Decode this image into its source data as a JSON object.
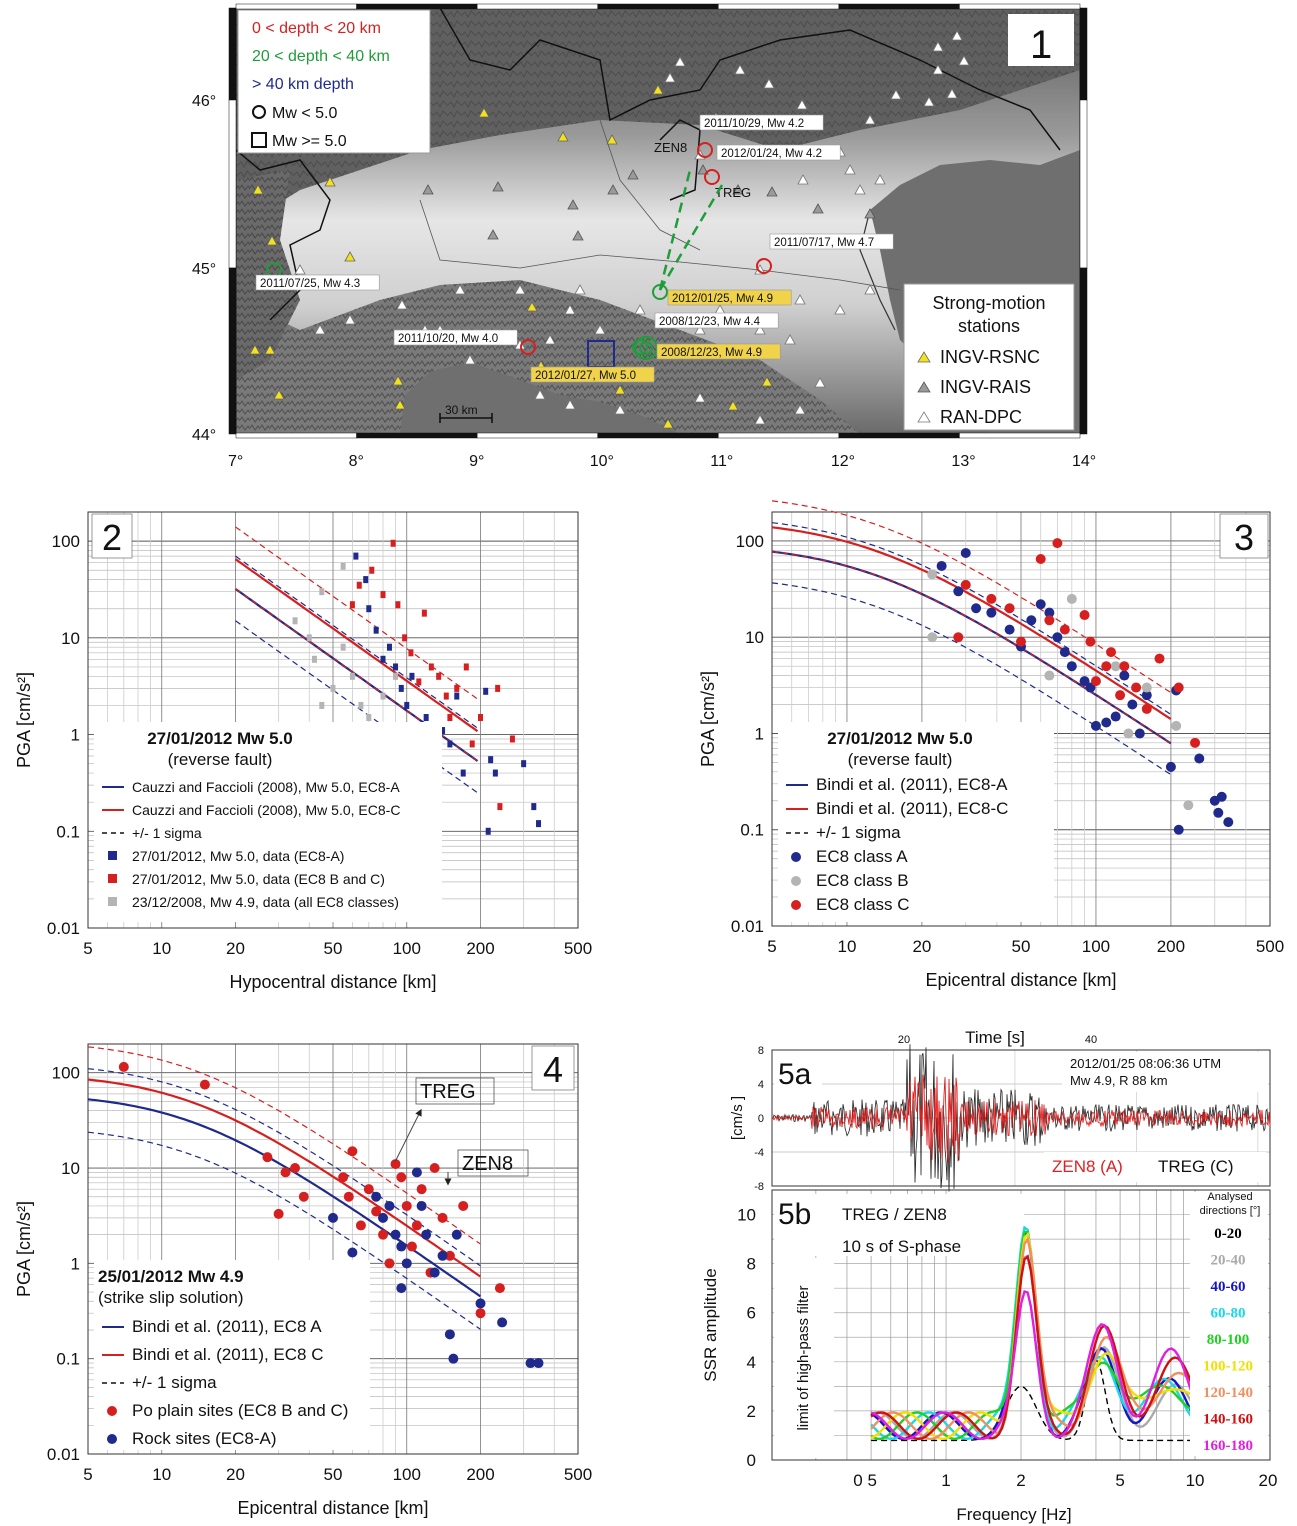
{
  "colors": {
    "red": "#d62020",
    "green": "#1f9d3a",
    "blue": "#1f2a8c",
    "yellow": "#f2e11c",
    "grey": "#9a9a9a",
    "sea": "#6f6f6f"
  },
  "p1": {
    "number": "1",
    "legend": [
      "0 < depth < 20 km",
      "20 < depth < 40 km",
      "> 40 km depth",
      "Mw < 5.0",
      "Mw >= 5.0"
    ],
    "lon_ticks": [
      "7°",
      "8°",
      "9°",
      "10°",
      "11°",
      "12°",
      "13°",
      "14°"
    ],
    "lat_ticks": [
      "46°",
      "45°",
      "44°"
    ],
    "scale": "30 km",
    "station_title1": "Strong-motion",
    "station_title2": "stations",
    "station_items": [
      "INGV-RSNC",
      "INGV-RAIS",
      "RAN-DPC"
    ],
    "events": [
      {
        "label": "2011/10/29, Mw 4.2",
        "color": "red",
        "hl": false
      },
      {
        "label": "2012/01/24, Mw 4.2",
        "color": "red",
        "hl": false
      },
      {
        "label": "2011/07/17, Mw 4.7",
        "color": "red",
        "hl": false
      },
      {
        "label": "2011/07/25, Mw 4.3",
        "color": "green",
        "hl": false
      },
      {
        "label": "2012/01/25, Mw 4.9",
        "color": "green",
        "hl": true
      },
      {
        "label": "2008/12/23, Mw 4.4",
        "color": "green",
        "hl": false
      },
      {
        "label": "2008/12/23, Mw 4.9",
        "color": "green",
        "hl": true
      },
      {
        "label": "2011/10/20, Mw 4.0",
        "color": "red",
        "hl": false
      },
      {
        "label": "2012/01/27, Mw 5.0",
        "color": "blue",
        "hl": true
      }
    ],
    "stations_named": [
      "ZEN8",
      "TREG"
    ]
  },
  "p2": {
    "number": "2",
    "ylabel": "PGA [cm/s²]",
    "xlabel": "Hypocentral distance [km]",
    "xticks": [
      "5",
      "10",
      "20",
      "50",
      "100",
      "200",
      "500"
    ],
    "yticks": [
      "100",
      "10",
      "1",
      "0.1",
      "0.01"
    ],
    "event": "27/01/2012 Mw 5.0",
    "mech": "(reverse fault)",
    "legend": [
      "Cauzzi and Faccioli (2008), Mw 5.0, EC8-A",
      "Cauzzi and Faccioli (2008), Mw 5.0, EC8-C",
      "+/- 1 sigma",
      "27/01/2012, Mw 5.0, data (EC8-A)",
      "27/01/2012, Mw 5.0, data (EC8 B and C)",
      "23/12/2008, Mw 4.9, data (all EC8 classes)"
    ]
  },
  "p3": {
    "number": "3",
    "ylabel": "PGA [cm/s²]",
    "xlabel": "Epicentral distance [km]",
    "xticks": [
      "5",
      "10",
      "20",
      "50",
      "100",
      "200",
      "500"
    ],
    "yticks": [
      "100",
      "10",
      "1",
      "0.1",
      "0.01"
    ],
    "event": "27/01/2012 Mw 5.0",
    "mech": "(reverse fault)",
    "legend": [
      "Bindi et al. (2011), EC8-A",
      "Bindi et al. (2011), EC8-C",
      "+/- 1 sigma",
      "EC8 class A",
      "EC8 class B",
      "EC8 class C"
    ]
  },
  "p4": {
    "number": "4",
    "ylabel": "PGA [cm/s²]",
    "xlabel": "Epicentral distance [km]",
    "xticks": [
      "5",
      "10",
      "20",
      "50",
      "100",
      "200",
      "500"
    ],
    "yticks": [
      "100",
      "10",
      "1",
      "0.1",
      "0.01"
    ],
    "event": "25/01/2012 Mw 4.9",
    "mech": "(strike slip solution)",
    "legend": [
      "Bindi et al. (2011), EC8 A",
      "Bindi et al. (2011), EC8 C",
      "+/- 1 sigma",
      "Po plain sites (EC8 B and C)",
      "Rock sites (EC8-A)"
    ],
    "ann": [
      "TREG",
      "ZEN8"
    ]
  },
  "p5a": {
    "number": "5a",
    "time_title": "Time [s]",
    "time_ticks": [
      "20",
      "40"
    ],
    "ylabel": "[cm/s ]",
    "yticks": [
      "8",
      "4",
      "0",
      "-4",
      "-8"
    ],
    "info1": "2012/01/25 08:06:36 UTM",
    "info2": "Mw 4.9, R 88 km",
    "trace_red": "ZEN8 (A)",
    "trace_black": "TREG (C)"
  },
  "p5b": {
    "number": "5b",
    "ratio": "TREG / ZEN8",
    "window": "10 s of S-phase",
    "ylabel": "SSR amplitude",
    "filter": "limit of high-pass filter",
    "xlabel": "Frequency [Hz]",
    "xticks": [
      "0 5",
      "1",
      "2",
      "5",
      "10",
      "20"
    ],
    "yticks": [
      "10",
      "8",
      "6",
      "4",
      "2",
      "0"
    ],
    "dir_title1": "Analysed",
    "dir_title2": "directions [°]",
    "dirs": [
      {
        "label": "0-20",
        "color": "#000000"
      },
      {
        "label": "20-40",
        "color": "#aaaaaa"
      },
      {
        "label": "40-60",
        "color": "#1515c8"
      },
      {
        "label": "60-80",
        "color": "#18d8e8"
      },
      {
        "label": "80-100",
        "color": "#20d020"
      },
      {
        "label": "100-120",
        "color": "#f0e000"
      },
      {
        "label": "120-140",
        "color": "#f09060"
      },
      {
        "label": "140-160",
        "color": "#d01010"
      },
      {
        "label": "160-180",
        "color": "#e020e0"
      }
    ]
  }
}
